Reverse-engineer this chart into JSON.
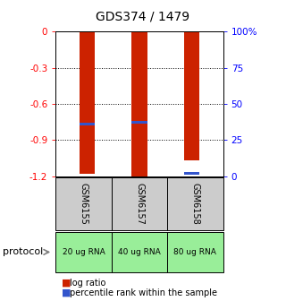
{
  "title": "GDS374 / 1479",
  "samples": [
    "GSM6155",
    "GSM6157",
    "GSM6158"
  ],
  "protocols": [
    "20 ug RNA",
    "40 ug RNA",
    "80 ug RNA"
  ],
  "log_ratios": [
    -1.18,
    -1.22,
    -1.07
  ],
  "percentile_values": [
    -0.77,
    -0.75,
    -1.175
  ],
  "ymin": -1.2,
  "ymax": 0.0,
  "yticks": [
    0,
    -0.3,
    -0.6,
    -0.9,
    -1.2
  ],
  "right_yticks_vals": [
    0,
    25,
    50,
    75,
    100
  ],
  "bar_color": "#cc2200",
  "blue_color": "#3355cc",
  "gray_cell": "#cccccc",
  "green_cell": "#99ee99",
  "title_fontsize": 10,
  "tick_fontsize": 7.5,
  "sample_fontsize": 7,
  "prot_fontsize": 6.5,
  "legend_fontsize": 7
}
